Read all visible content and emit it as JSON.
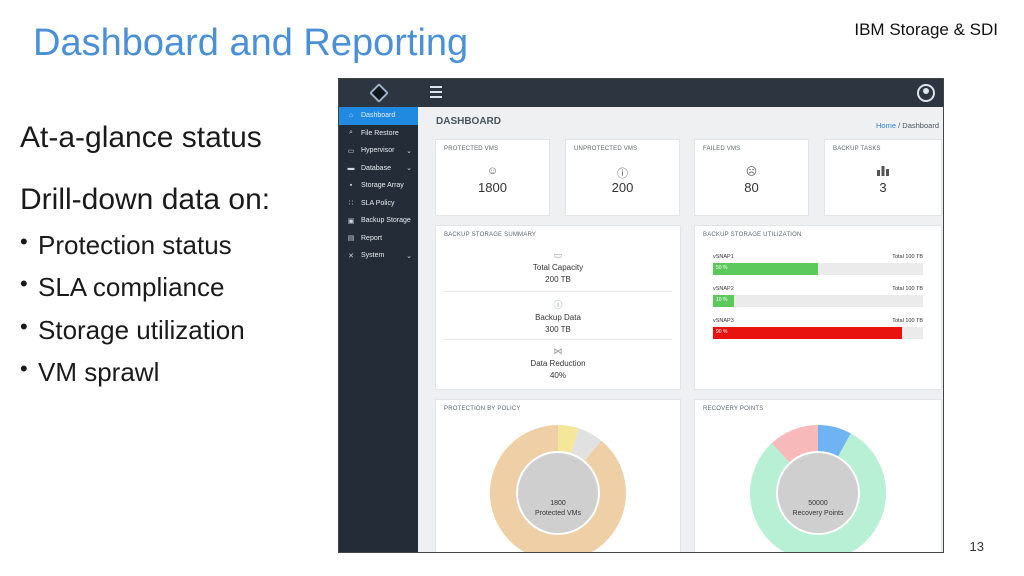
{
  "slide": {
    "title": "Dashboard and Reporting",
    "brand": "IBM Storage & SDI",
    "page_number": "13",
    "heading_1": "At-a-glance status",
    "heading_2": "Drill-down data on:",
    "bullets": [
      "Protection status",
      "SLA compliance",
      "Storage utilization",
      "VM sprawl"
    ]
  },
  "app": {
    "sidebar": [
      {
        "label": "Dashboard",
        "icon": "home-icon",
        "active": true
      },
      {
        "label": "File Restore",
        "icon": "search-icon"
      },
      {
        "label": "Hypervisor",
        "icon": "monitor-icon",
        "chevron": true
      },
      {
        "label": "Database",
        "icon": "database-icon",
        "chevron": true
      },
      {
        "label": "Storage Array",
        "icon": "storage-icon"
      },
      {
        "label": "SLA Policy",
        "icon": "policy-icon"
      },
      {
        "label": "Backup Storage",
        "icon": "backup-icon"
      },
      {
        "label": "Report",
        "icon": "report-icon"
      },
      {
        "label": "System",
        "icon": "wrench-icon",
        "chevron": true
      }
    ],
    "page_title": "DASHBOARD",
    "breadcrumb": {
      "home": "Home",
      "separator": "/",
      "current": "Dashboard"
    },
    "stats": [
      {
        "label": "PROTECTED VMS",
        "icon": "smile-icon",
        "value": "1800"
      },
      {
        "label": "UNPROTECTED VMS",
        "icon": "info-icon",
        "value": "200"
      },
      {
        "label": "FAILED VMS",
        "icon": "frown-icon",
        "value": "80"
      },
      {
        "label": "BACKUP TASKS",
        "icon": "bar-chart-icon",
        "value": "3"
      }
    ],
    "backup_summary": {
      "title": "BACKUP STORAGE SUMMARY",
      "rows": [
        {
          "icon": "box-icon",
          "label": "Total Capacity",
          "value": "200 TB"
        },
        {
          "icon": "info-icon",
          "label": "Backup Data",
          "value": "300 TB"
        },
        {
          "icon": "bowtie-icon",
          "label": "Data Reduction",
          "value": "40%"
        }
      ]
    },
    "backup_utilization": {
      "title": "BACKUP STORAGE UTILIZATION",
      "rows": [
        {
          "name": "vSNAP1",
          "total": "Total 100 TB",
          "pct_label": "50 %",
          "fraction": 0.5,
          "color": "#5cc95c"
        },
        {
          "name": "vSNAP2",
          "total": "Total 100 TB",
          "pct_label": "10 %",
          "fraction": 0.1,
          "color": "#5cc95c"
        },
        {
          "name": "vSNAP3",
          "total": "Total 100 TB",
          "pct_label": "90 %",
          "fraction": 0.9,
          "color": "#e8130f"
        }
      ]
    },
    "protection_by_policy": {
      "title": "PROTECTION BY POLICY",
      "center_value": "1800",
      "center_label": "Protected VMs",
      "segments": [
        {
          "fraction": 0.05,
          "color": "#f5e79a"
        },
        {
          "fraction": 0.06,
          "color": "#e1e1e1"
        },
        {
          "fraction": 0.89,
          "color": "#efcfa6"
        }
      ]
    },
    "recovery_points": {
      "title": "RECOVERY POINTS",
      "center_value": "50000",
      "center_label": "Recovery Points",
      "segments": [
        {
          "fraction": 0.08,
          "color": "#6fb3f2"
        },
        {
          "fraction": 0.8,
          "color": "#b7f0d4"
        },
        {
          "fraction": 0.12,
          "color": "#f7b9b9"
        }
      ]
    }
  }
}
